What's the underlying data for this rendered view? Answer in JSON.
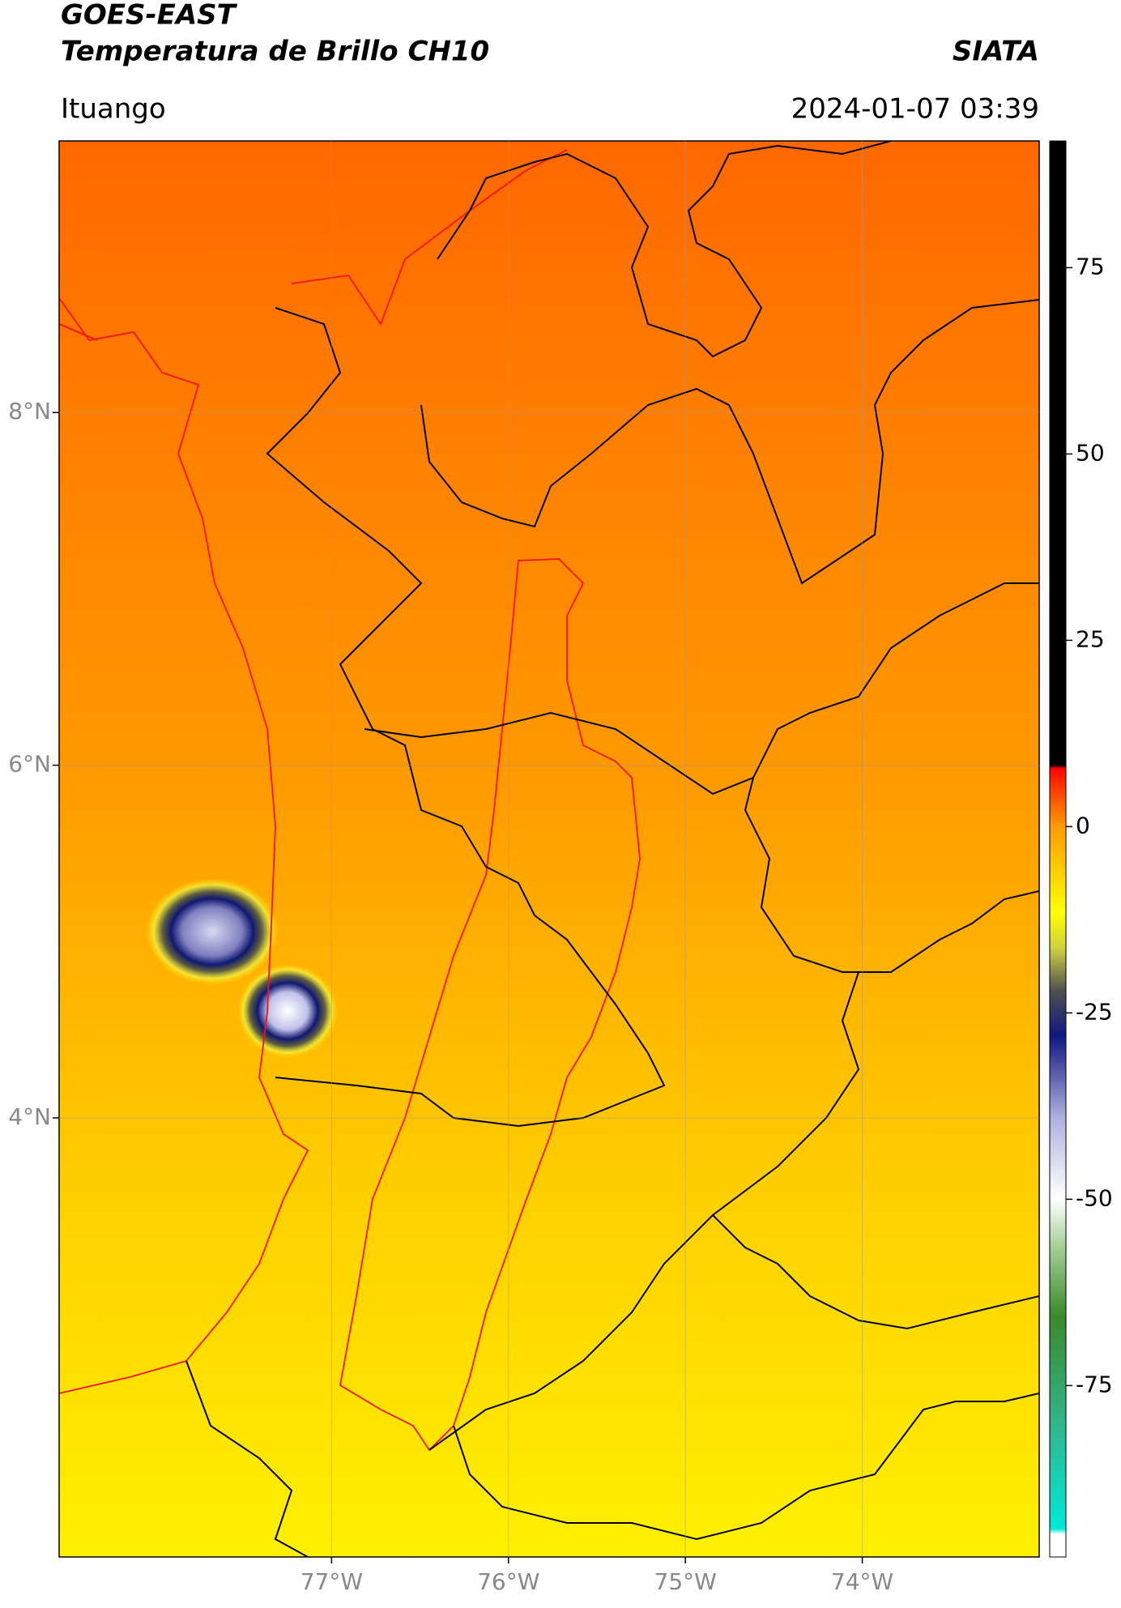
{
  "chart_data": {
    "type": "map",
    "title": "GOES-EAST",
    "subtitle": "Temperatura de Brillo CH10",
    "source": "SIATA",
    "location": "Ituango",
    "datetime": "2024-01-07 03:39",
    "xlim": [
      -78.54,
      -73.0
    ],
    "ylim": [
      1.51,
      9.54
    ],
    "xticks": [
      {
        "value": -77,
        "label": "77°W"
      },
      {
        "value": -76,
        "label": "76°W"
      },
      {
        "value": -75,
        "label": "75°W"
      },
      {
        "value": -74,
        "label": "74°W"
      }
    ],
    "yticks": [
      {
        "value": 8,
        "label": "8°N"
      },
      {
        "value": 6,
        "label": "6°N"
      },
      {
        "value": 4,
        "label": "4°N"
      }
    ],
    "grid": true,
    "colorbar": {
      "lim": [
        -98,
        92
      ],
      "ticks": [
        -75,
        -50,
        -25,
        0,
        25,
        50,
        75
      ]
    }
  }
}
